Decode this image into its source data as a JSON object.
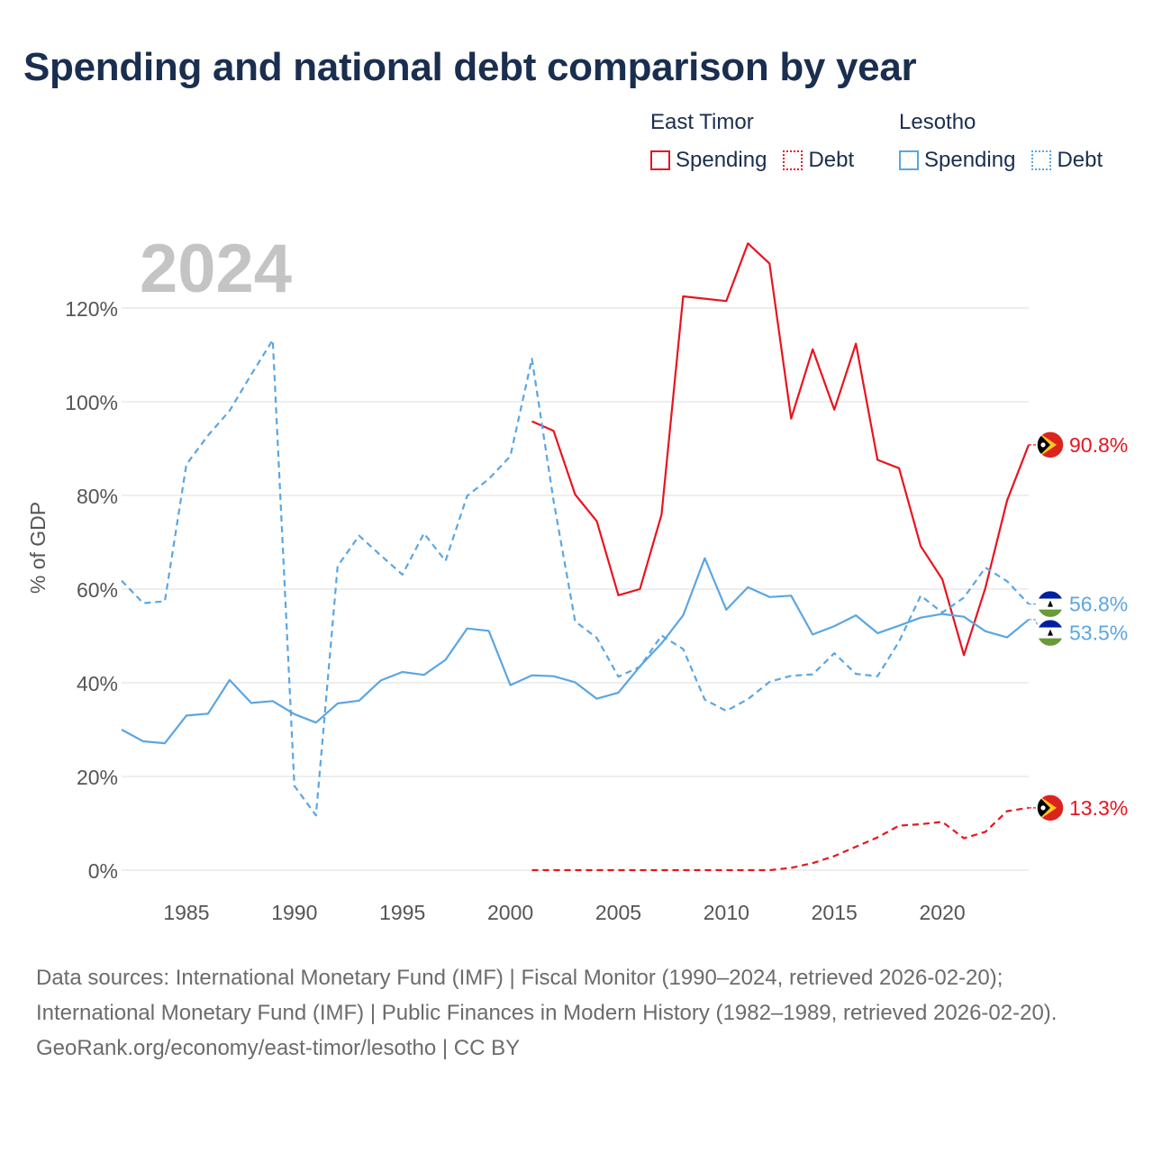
{
  "title": "Spending and national debt comparison by year",
  "legend": {
    "groups": [
      {
        "name": "East Timor",
        "color": "#e8141e",
        "items": [
          "Spending",
          "Debt"
        ]
      },
      {
        "name": "Lesotho",
        "color": "#5aa6e3",
        "items": [
          "Spending",
          "Debt"
        ]
      }
    ]
  },
  "chart_data": {
    "type": "line",
    "year_label": "2024",
    "ylabel": "% of GDP",
    "xlim": [
      1982,
      2024
    ],
    "ylim": [
      0,
      130
    ],
    "x_ticks": [
      1985,
      1990,
      1995,
      2000,
      2005,
      2010,
      2015,
      2020
    ],
    "y_ticks": [
      0,
      20,
      40,
      60,
      80,
      100,
      120
    ],
    "series": [
      {
        "name": "East Timor Spending",
        "country": "East Timor",
        "metric": "Spending",
        "color": "#e8141e",
        "dashed": false,
        "end_label": "90.8%",
        "flag": "east-timor",
        "x": [
          2001,
          2002,
          2003,
          2004,
          2005,
          2006,
          2007,
          2008,
          2009,
          2010,
          2011,
          2012,
          2013,
          2014,
          2015,
          2016,
          2017,
          2018,
          2019,
          2020,
          2021,
          2022,
          2023,
          2024
        ],
        "y": [
          95.8,
          93.8,
          80.2,
          74.5,
          58.7,
          60.0,
          75.9,
          122.5,
          122.0,
          121.5,
          133.8,
          129.5,
          96.4,
          111.2,
          98.3,
          112.4,
          87.6,
          85.8,
          69.2,
          62.1,
          45.9,
          60.3,
          78.9,
          90.8
        ]
      },
      {
        "name": "East Timor Debt",
        "country": "East Timor",
        "metric": "Debt",
        "color": "#e8141e",
        "dashed": true,
        "end_label": "13.3%",
        "flag": "east-timor",
        "x": [
          2001,
          2002,
          2003,
          2004,
          2005,
          2006,
          2007,
          2008,
          2009,
          2010,
          2011,
          2012,
          2013,
          2014,
          2015,
          2016,
          2017,
          2018,
          2019,
          2020,
          2021,
          2022,
          2023,
          2024
        ],
        "y": [
          0,
          0,
          0,
          0,
          0,
          0,
          0,
          0,
          0,
          0,
          0,
          0,
          0.5,
          1.5,
          3.0,
          5.0,
          7.0,
          9.5,
          9.8,
          10.3,
          6.8,
          8.2,
          12.6,
          13.3
        ]
      },
      {
        "name": "Lesotho Spending",
        "country": "Lesotho",
        "metric": "Spending",
        "color": "#5aa6e3",
        "dashed": false,
        "end_label": "53.5%",
        "flag": "lesotho",
        "x": [
          1982,
          1983,
          1984,
          1985,
          1986,
          1987,
          1988,
          1989,
          1990,
          1991,
          1992,
          1993,
          1994,
          1995,
          1996,
          1997,
          1998,
          1999,
          2000,
          2001,
          2002,
          2003,
          2004,
          2005,
          2006,
          2007,
          2008,
          2009,
          2010,
          2011,
          2012,
          2013,
          2014,
          2015,
          2016,
          2017,
          2018,
          2019,
          2020,
          2021,
          2022,
          2023,
          2024
        ],
        "y": [
          30.0,
          27.5,
          27.1,
          33.0,
          33.4,
          40.6,
          35.7,
          36.1,
          33.3,
          31.5,
          35.6,
          36.2,
          40.5,
          42.3,
          41.7,
          44.9,
          51.6,
          51.1,
          39.5,
          41.6,
          41.4,
          40.1,
          36.6,
          37.9,
          43.5,
          48.4,
          54.4,
          66.6,
          55.6,
          60.4,
          58.3,
          58.6,
          50.3,
          52.1,
          54.4,
          50.6,
          52.2,
          53.9,
          54.7,
          54.1,
          51.0,
          49.7,
          53.5
        ]
      },
      {
        "name": "Lesotho Debt",
        "country": "Lesotho",
        "metric": "Debt",
        "color": "#5aa6e3",
        "dashed": true,
        "end_label": "56.8%",
        "flag": "lesotho",
        "x": [
          1982,
          1983,
          1984,
          1985,
          1986,
          1987,
          1988,
          1989,
          1990,
          1991,
          1992,
          1993,
          1994,
          1995,
          1996,
          1997,
          1998,
          1999,
          2000,
          2001,
          2002,
          2003,
          2004,
          2005,
          2006,
          2007,
          2008,
          2009,
          2010,
          2011,
          2012,
          2013,
          2014,
          2015,
          2016,
          2017,
          2018,
          2019,
          2020,
          2021,
          2022,
          2023,
          2024
        ],
        "y": [
          61.8,
          57.0,
          57.4,
          86.6,
          92.8,
          98.1,
          105.8,
          113.2,
          18.0,
          11.7,
          64.9,
          71.4,
          67.2,
          63.1,
          71.9,
          66.0,
          79.9,
          83.5,
          88.4,
          109.2,
          78.9,
          53.1,
          49.6,
          41.3,
          43.4,
          50.1,
          47.2,
          36.4,
          34.0,
          36.5,
          40.2,
          41.5,
          41.8,
          46.3,
          41.9,
          41.4,
          48.8,
          58.6,
          55.0,
          58.2,
          64.6,
          61.7,
          56.8
        ]
      }
    ]
  },
  "footer": {
    "sources": "Data sources: International Monetary Fund (IMF) | Fiscal Monitor (1990–2024, retrieved 2026-02-20); International Monetary Fund (IMF) | Public Finances in Modern History (1982–1989, retrieved 2026-02-20).",
    "credit": "GeoRank.org/economy/east-timor/lesotho | CC BY"
  }
}
